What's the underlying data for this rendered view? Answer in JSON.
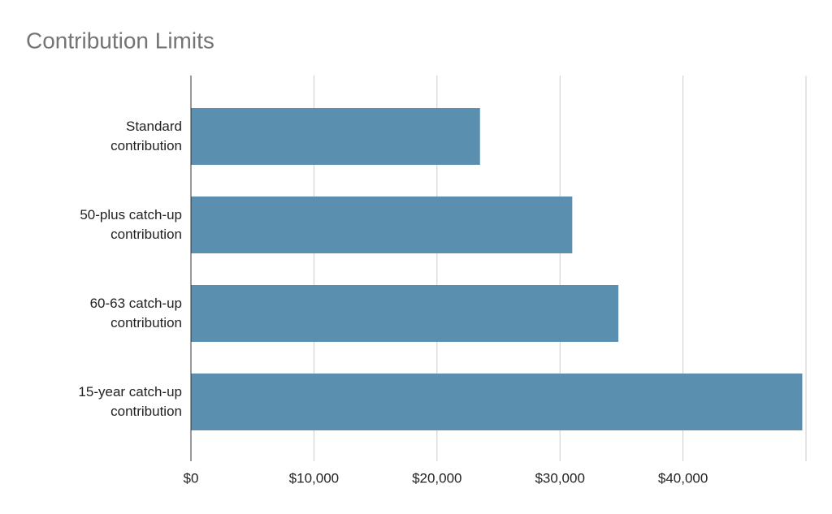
{
  "chart_data": {
    "type": "bar",
    "orientation": "horizontal",
    "title": "Contribution Limits",
    "categories": [
      "Standard\ncontribution",
      "50-plus catch-up\ncontribution",
      "60-63 catch-up\ncontribution",
      "15-year catch-up\ncontribution"
    ],
    "values": [
      23500,
      31000,
      34750,
      49700
    ],
    "color": "#5b8fb0",
    "xlim": [
      0,
      50000
    ],
    "xticks": [
      {
        "value": 0,
        "label": "$0"
      },
      {
        "value": 10000,
        "label": "$10,000"
      },
      {
        "value": 20000,
        "label": "$20,000"
      },
      {
        "value": 30000,
        "label": "$30,000"
      },
      {
        "value": 40000,
        "label": "$40,000"
      }
    ],
    "grid": true
  }
}
